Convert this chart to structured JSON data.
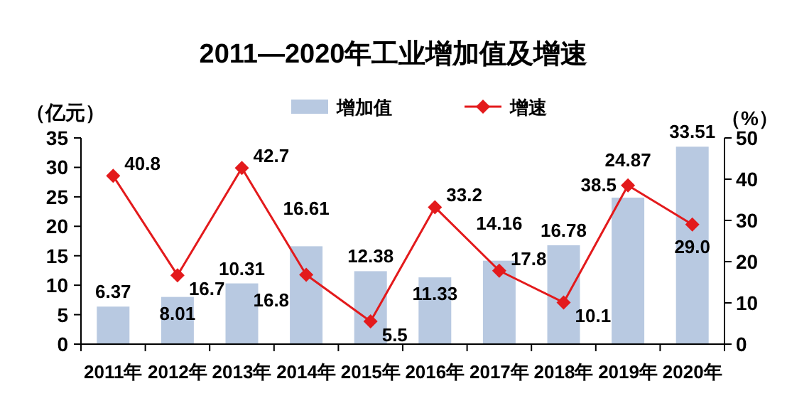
{
  "chart_data": {
    "type": "bar",
    "title": "2011—2020年工业增加值及增速",
    "ylabel": "（亿元）",
    "y2label": "（%）",
    "categories": [
      "2011年",
      "2012年",
      "2013年",
      "2014年",
      "2015年",
      "2016年",
      "2017年",
      "2018年",
      "2019年",
      "2020年"
    ],
    "series": [
      {
        "name": "增加值",
        "type": "bar",
        "color": "#b8c9e1",
        "values": [
          6.37,
          8.01,
          10.31,
          16.61,
          12.38,
          11.33,
          14.16,
          16.78,
          24.87,
          33.51
        ],
        "value_labels": [
          "6.37",
          "8.01",
          "10.31",
          "16.61",
          "12.38",
          "11.33",
          "14.16",
          "16.78",
          "24.87",
          "33.51"
        ]
      },
      {
        "name": "增速",
        "type": "line",
        "axis": "y2",
        "color": "#e31a1c",
        "values": [
          40.8,
          16.7,
          42.7,
          16.8,
          5.5,
          33.2,
          17.8,
          10.1,
          38.5,
          29.0
        ],
        "value_labels": [
          "40.8",
          "16.7",
          "42.7",
          "16.8",
          "5.5",
          "33.2",
          "17.8",
          "10.1",
          "38.5",
          "29.0"
        ]
      }
    ],
    "ylim": [
      0,
      35
    ],
    "yticks": [
      0,
      5,
      10,
      15,
      20,
      25,
      30,
      35
    ],
    "y2lim": [
      0,
      50
    ],
    "y2ticks": [
      0,
      10,
      20,
      30,
      40,
      50
    ],
    "marker": "diamond",
    "line_style": "solid",
    "legend": "top",
    "grid": false
  }
}
